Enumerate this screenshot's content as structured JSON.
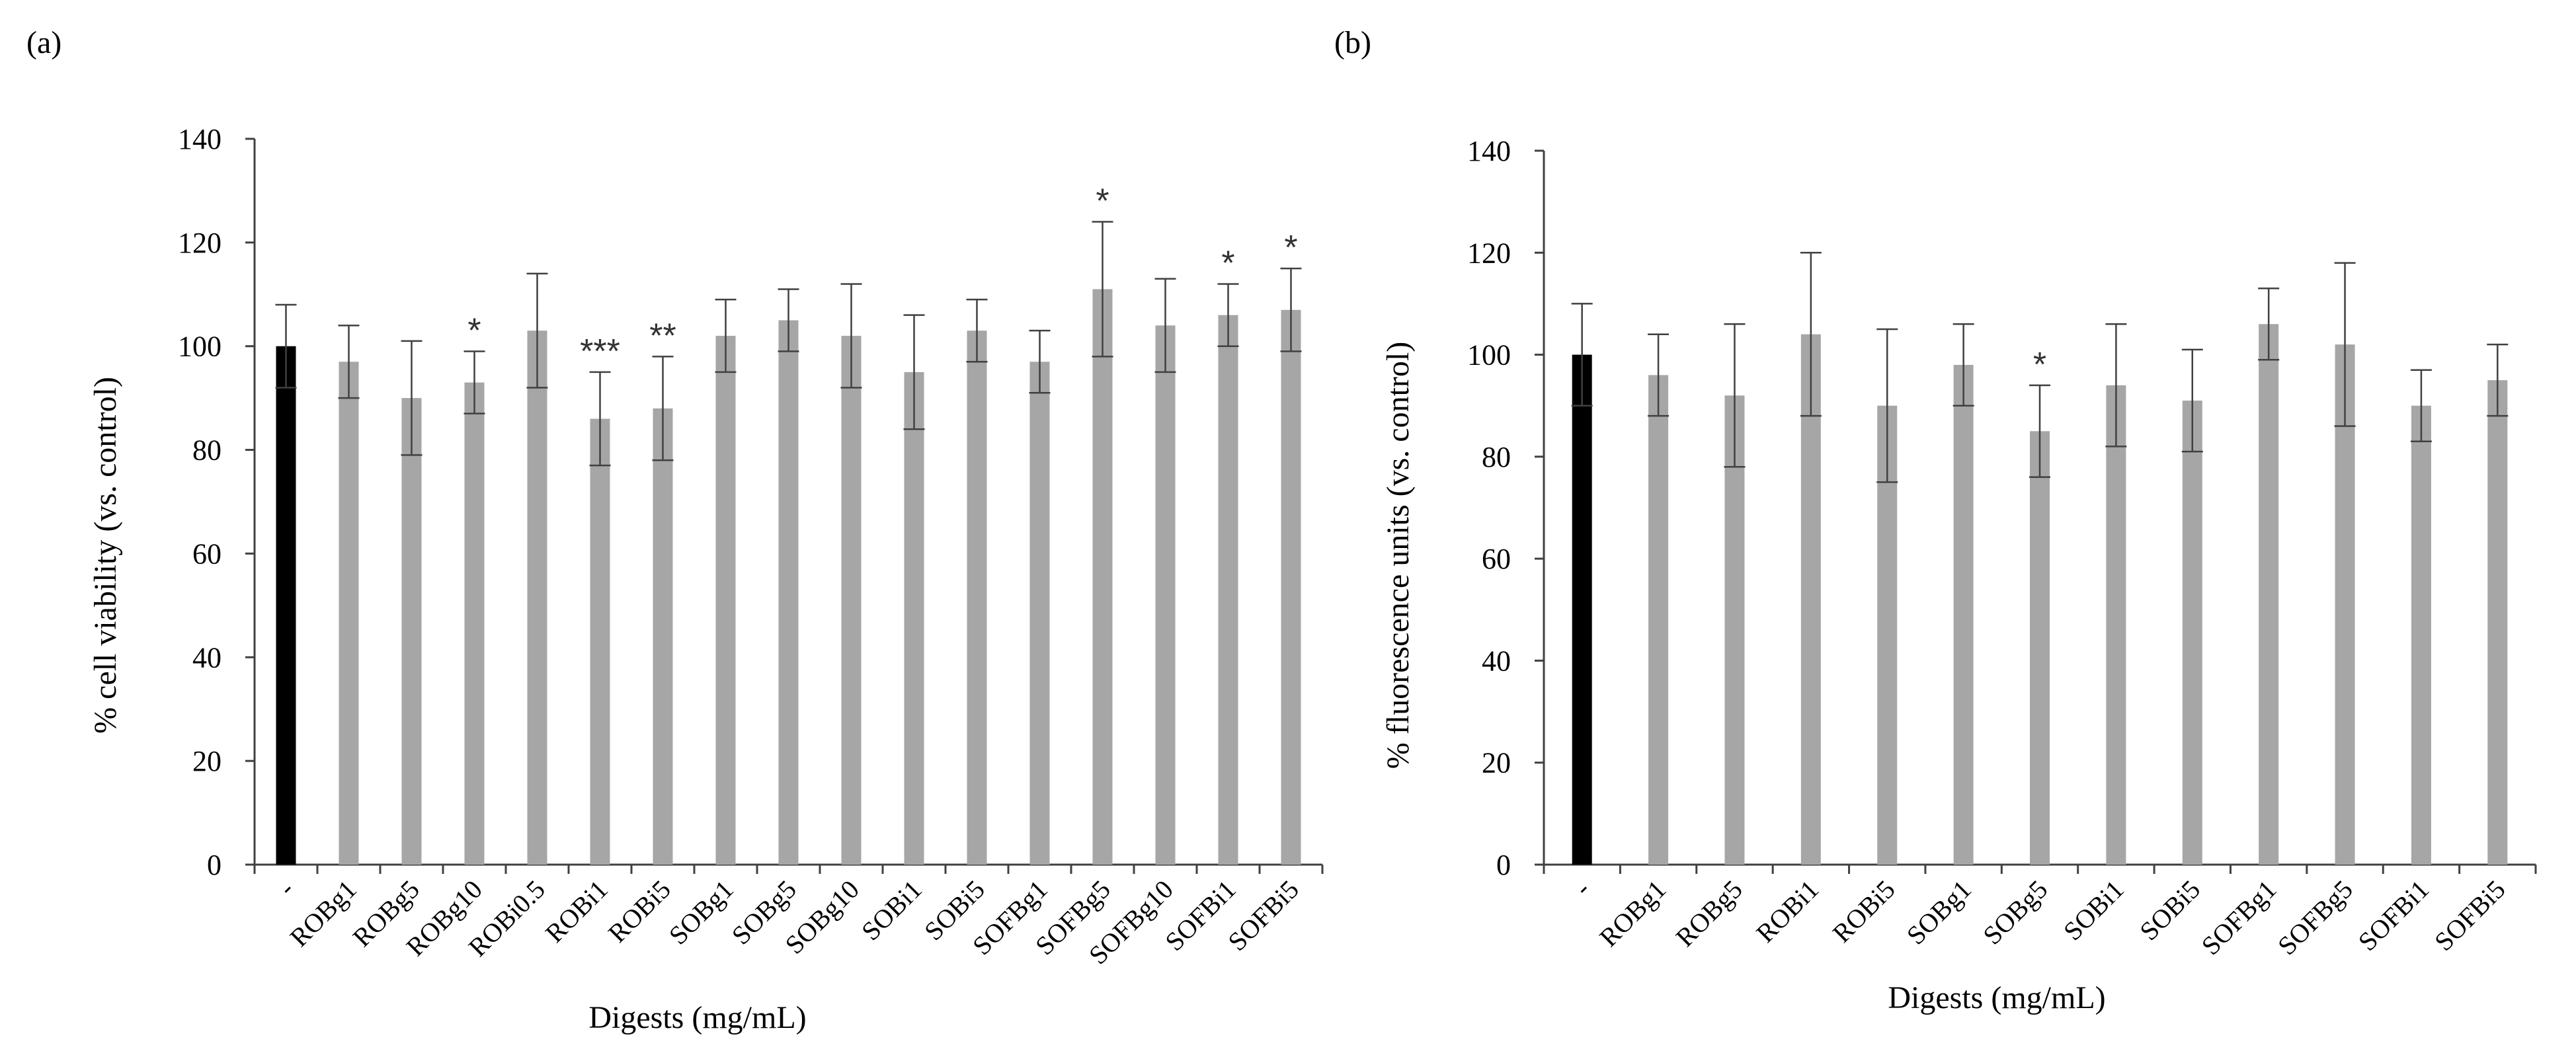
{
  "chart_data": [
    {
      "panel_label": "(a)",
      "type": "bar",
      "xlabel": "Digests (mg/mL)",
      "ylabel": "% cell viability (vs. control)",
      "ylim": [
        0,
        140
      ],
      "yticks": [
        0,
        20,
        40,
        60,
        80,
        100,
        120,
        140
      ],
      "categories": [
        "-",
        "ROBg1",
        "ROBg5",
        "ROBg10",
        "ROBi0.5",
        "ROBi1",
        "ROBi5",
        "SOBg1",
        "SOBg5",
        "SOBg10",
        "SOBi1",
        "SOBi5",
        "SOFBg1",
        "SOFBg5",
        "SOFBg10",
        "SOFBi1",
        "SOFBi5"
      ],
      "values": [
        100,
        97,
        90,
        93,
        103,
        86,
        88,
        102,
        105,
        102,
        95,
        103,
        97,
        111,
        104,
        106,
        107
      ],
      "errors": [
        8,
        7,
        11,
        6,
        11,
        9,
        10,
        7,
        6,
        10,
        11,
        6,
        6,
        13,
        9,
        6,
        8
      ],
      "significance": [
        "",
        "",
        "",
        "*",
        "",
        "***",
        "**",
        "",
        "",
        "",
        "",
        "",
        "",
        "*",
        "",
        "*",
        "*"
      ],
      "bar_colors": [
        "#000000",
        "#a6a6a6",
        "#a6a6a6",
        "#a6a6a6",
        "#a6a6a6",
        "#a6a6a6",
        "#a6a6a6",
        "#a6a6a6",
        "#a6a6a6",
        "#a6a6a6",
        "#a6a6a6",
        "#a6a6a6",
        "#a6a6a6",
        "#a6a6a6",
        "#a6a6a6",
        "#a6a6a6",
        "#a6a6a6"
      ]
    },
    {
      "panel_label": "(b)",
      "type": "bar",
      "xlabel": "Digests (mg/mL)",
      "ylabel": "% fluorescence units (vs. control)",
      "ylim": [
        0,
        140
      ],
      "yticks": [
        0,
        20,
        40,
        60,
        80,
        100,
        120,
        140
      ],
      "categories": [
        "-",
        "ROBg1",
        "ROBg5",
        "ROBi1",
        "ROBi5",
        "SOBg1",
        "SOBg5",
        "SOBi1",
        "SOBi5",
        "SOFBg1",
        "SOFBg5",
        "SOFBi1",
        "SOFBi5"
      ],
      "values": [
        100,
        96,
        92,
        104,
        90,
        98,
        85,
        94,
        91,
        106,
        102,
        90,
        95
      ],
      "errors": [
        10,
        8,
        14,
        16,
        15,
        8,
        9,
        12,
        10,
        7,
        16,
        7,
        7
      ],
      "significance": [
        "",
        "",
        "",
        "",
        "",
        "",
        "*",
        "",
        "",
        "",
        "",
        "",
        ""
      ],
      "bar_colors": [
        "#000000",
        "#a6a6a6",
        "#a6a6a6",
        "#a6a6a6",
        "#a6a6a6",
        "#a6a6a6",
        "#a6a6a6",
        "#a6a6a6",
        "#a6a6a6",
        "#a6a6a6",
        "#a6a6a6",
        "#a6a6a6",
        "#a6a6a6"
      ]
    }
  ]
}
